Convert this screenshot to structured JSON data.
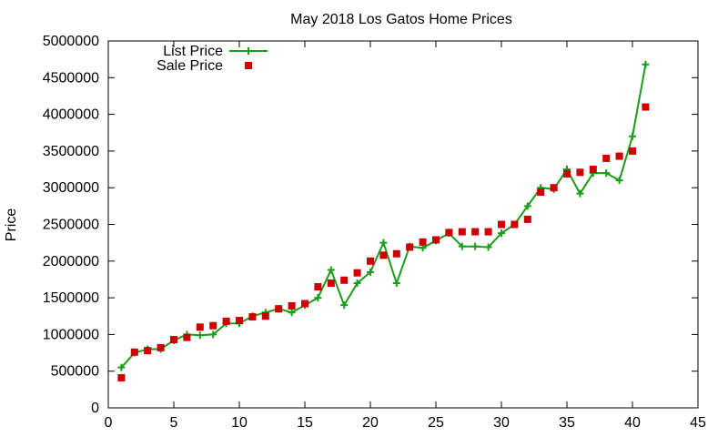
{
  "chart_data": {
    "type": "line",
    "title": "May 2018 Los Gatos Home Prices",
    "xlabel": "",
    "ylabel": "Price",
    "xlim": [
      0,
      45
    ],
    "ylim": [
      0,
      5000000
    ],
    "x_ticks": [
      "0",
      "5",
      "10",
      "15",
      "20",
      "25",
      "30",
      "35",
      "40",
      "45"
    ],
    "y_ticks": [
      "0",
      "500000",
      "1000000",
      "1500000",
      "2000000",
      "2500000",
      "3000000",
      "3500000",
      "4000000",
      "4500000",
      "5000000"
    ],
    "grid": false,
    "legend_position": "top-left",
    "series": [
      {
        "name": "List Price",
        "style": "line+points",
        "color": "#1a9e1a",
        "x": [
          1,
          2,
          3,
          4,
          5,
          6,
          7,
          8,
          9,
          10,
          11,
          12,
          13,
          14,
          15,
          16,
          17,
          18,
          19,
          20,
          21,
          22,
          23,
          24,
          25,
          26,
          27,
          28,
          29,
          30,
          31,
          32,
          33,
          34,
          35,
          36,
          37,
          38,
          39,
          40,
          41
        ],
        "y": [
          550000,
          750000,
          800000,
          800000,
          920000,
          1000000,
          990000,
          1000000,
          1150000,
          1150000,
          1250000,
          1300000,
          1350000,
          1300000,
          1400000,
          1500000,
          1880000,
          1400000,
          1700000,
          1850000,
          2250000,
          1700000,
          2200000,
          2180000,
          2280000,
          2380000,
          2200000,
          2200000,
          2190000,
          2380000,
          2500000,
          2750000,
          3000000,
          2980000,
          3250000,
          2920000,
          3200000,
          3200000,
          3100000,
          3700000,
          4680000
        ]
      },
      {
        "name": "Sale Price",
        "style": "points",
        "color": "#cc0000",
        "x": [
          1,
          2,
          3,
          4,
          5,
          6,
          7,
          8,
          9,
          10,
          11,
          12,
          13,
          14,
          15,
          16,
          17,
          18,
          19,
          20,
          21,
          22,
          23,
          24,
          25,
          26,
          27,
          28,
          29,
          30,
          31,
          32,
          33,
          34,
          35,
          36,
          37,
          38,
          39,
          40,
          41
        ],
        "y": [
          410000,
          760000,
          780000,
          820000,
          930000,
          960000,
          1100000,
          1120000,
          1180000,
          1190000,
          1240000,
          1250000,
          1350000,
          1390000,
          1420000,
          1650000,
          1700000,
          1740000,
          1840000,
          2000000,
          2080000,
          2100000,
          2190000,
          2260000,
          2290000,
          2390000,
          2400000,
          2400000,
          2400000,
          2500000,
          2500000,
          2570000,
          2940000,
          3000000,
          3190000,
          3210000,
          3250000,
          3400000,
          3430000,
          3500000,
          4100000
        ]
      }
    ]
  }
}
